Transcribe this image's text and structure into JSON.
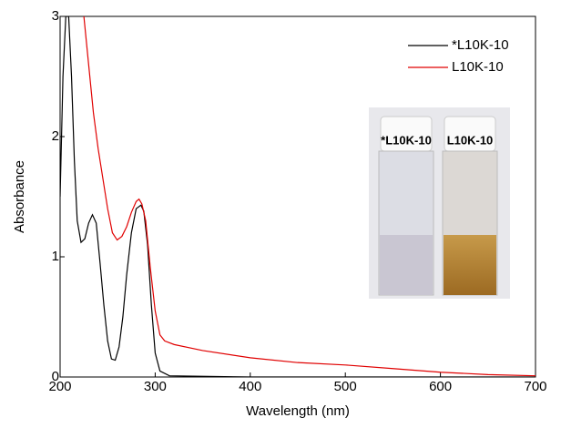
{
  "chart_data": {
    "type": "line",
    "xlabel": "Wavelength (nm)",
    "ylabel": "Absorbance",
    "xlim": [
      200,
      700
    ],
    "xticks": [
      200,
      300,
      400,
      500,
      600,
      700
    ],
    "ylim": [
      0,
      3
    ],
    "yticks": [
      0,
      1,
      2,
      3
    ],
    "legend": "upper right",
    "annotations": [
      "*L10K-10",
      "L10K-10"
    ],
    "series": [
      {
        "name": "*L10K-10",
        "color": "#000000",
        "x": [
          200,
          203,
          206,
          209,
          212,
          215,
          218,
          222,
          226,
          230,
          234,
          238,
          242,
          246,
          250,
          254,
          258,
          262,
          266,
          270,
          275,
          280,
          285,
          288,
          292,
          296,
          300,
          305,
          315,
          400,
          700
        ],
        "values": [
          1.5,
          2.5,
          3.0,
          3.0,
          2.5,
          1.8,
          1.3,
          1.12,
          1.15,
          1.28,
          1.35,
          1.28,
          0.95,
          0.6,
          0.3,
          0.15,
          0.14,
          0.25,
          0.5,
          0.85,
          1.2,
          1.4,
          1.43,
          1.38,
          1.1,
          0.6,
          0.2,
          0.05,
          0.01,
          0,
          0
        ]
      },
      {
        "name": "L10K-10",
        "color": "#e00000",
        "x": [
          225,
          230,
          235,
          240,
          245,
          250,
          255,
          260,
          265,
          270,
          275,
          280,
          283,
          286,
          290,
          295,
          300,
          305,
          310,
          320,
          350,
          400,
          450,
          500,
          550,
          600,
          650,
          700
        ],
        "values": [
          3.0,
          2.6,
          2.2,
          1.9,
          1.65,
          1.4,
          1.2,
          1.14,
          1.17,
          1.25,
          1.37,
          1.46,
          1.48,
          1.44,
          1.3,
          0.9,
          0.55,
          0.35,
          0.3,
          0.27,
          0.22,
          0.16,
          0.12,
          0.1,
          0.07,
          0.04,
          0.02,
          0.01
        ]
      }
    ]
  }
}
